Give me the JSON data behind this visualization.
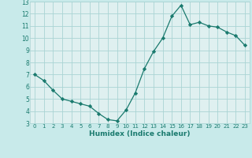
{
  "x": [
    0,
    1,
    2,
    3,
    4,
    5,
    6,
    7,
    8,
    9,
    10,
    11,
    12,
    13,
    14,
    15,
    16,
    17,
    18,
    19,
    20,
    21,
    22,
    23
  ],
  "y": [
    7.0,
    6.5,
    5.7,
    5.0,
    4.8,
    4.6,
    4.4,
    3.8,
    3.3,
    3.2,
    4.1,
    5.5,
    7.5,
    8.9,
    10.0,
    11.8,
    12.7,
    11.1,
    11.3,
    11.0,
    10.9,
    10.5,
    10.2,
    9.4
  ],
  "line_color": "#1a7a6e",
  "marker": "D",
  "marker_size": 2.2,
  "background_color": "#c8eaea",
  "grid_color": "#aad4d4",
  "xlabel": "Humidex (Indice chaleur)",
  "xlim": [
    -0.5,
    23.5
  ],
  "ylim": [
    3,
    13
  ],
  "xticks": [
    0,
    1,
    2,
    3,
    4,
    5,
    6,
    7,
    8,
    9,
    10,
    11,
    12,
    13,
    14,
    15,
    16,
    17,
    18,
    19,
    20,
    21,
    22,
    23
  ],
  "yticks": [
    3,
    4,
    5,
    6,
    7,
    8,
    9,
    10,
    11,
    12,
    13
  ],
  "label_color": "#1a7a6e",
  "tick_color": "#1a7a6e",
  "axis_bg": "#dff0f0",
  "bottom_bar_color": "#5ab5b5"
}
